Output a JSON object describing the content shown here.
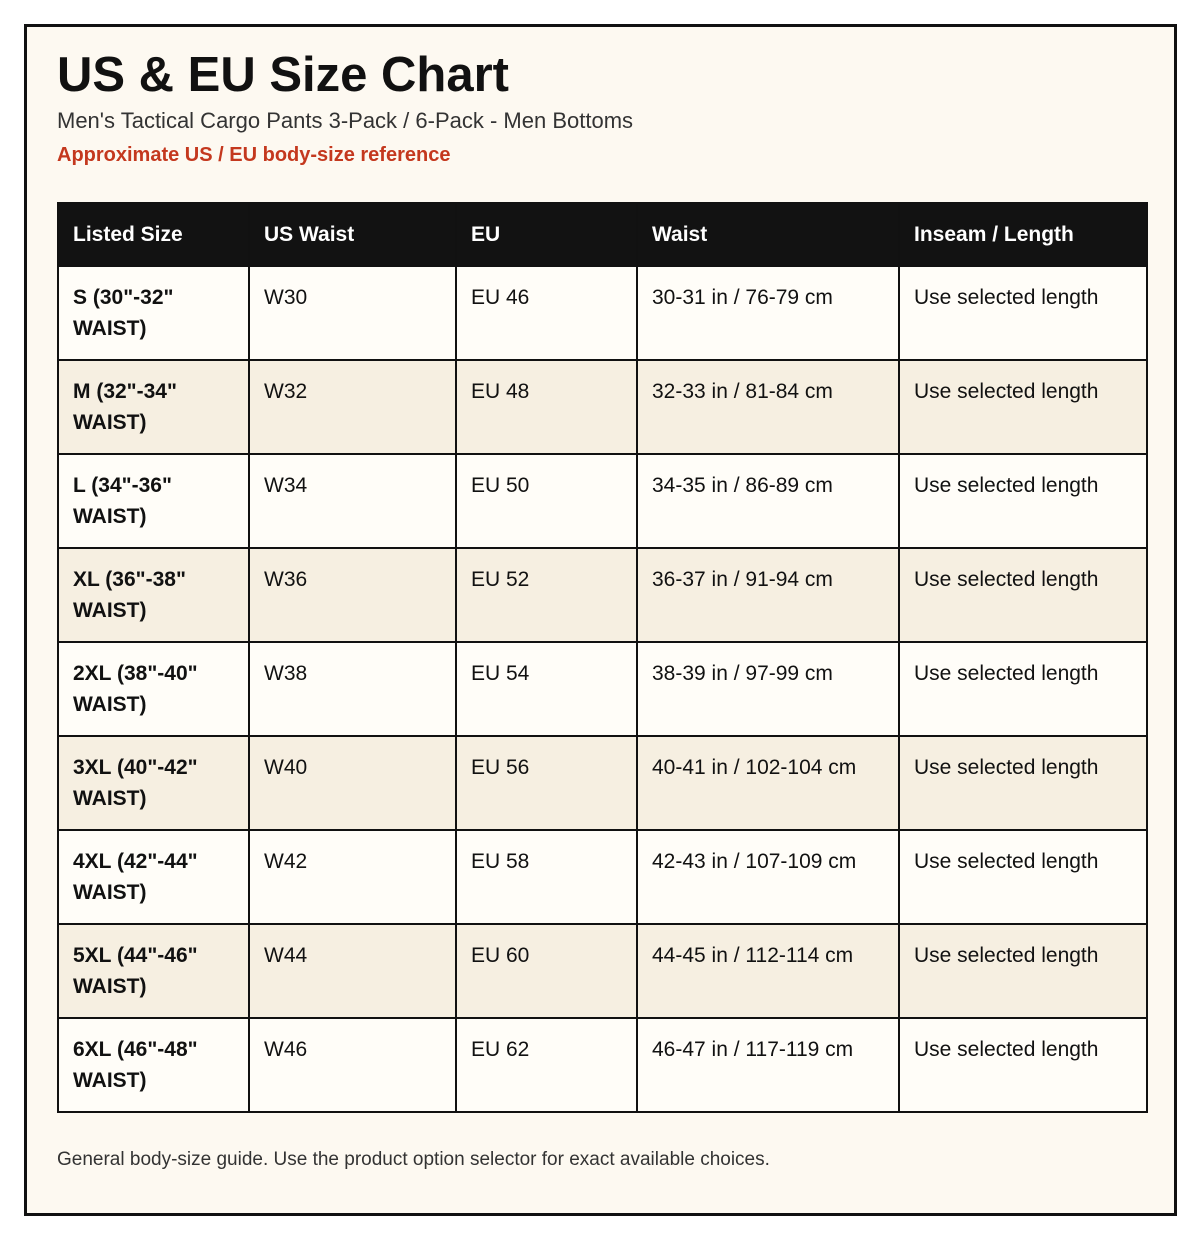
{
  "header": {
    "title": "US & EU Size Chart",
    "subtitle": "Men's Tactical Cargo Pants 3-Pack / 6-Pack - Men Bottoms",
    "note": "Approximate US / EU body-size reference"
  },
  "table": {
    "columns": [
      "Listed Size",
      "US Waist",
      "EU",
      "Waist",
      "Inseam / Length"
    ],
    "rows": [
      {
        "size": "S (30\"-32\" WAIST)",
        "us_waist": "W30",
        "eu": "EU 46",
        "waist": "30-31 in / 76-79 cm",
        "inseam": "Use selected length"
      },
      {
        "size": "M (32\"-34\" WAIST)",
        "us_waist": "W32",
        "eu": "EU 48",
        "waist": "32-33 in / 81-84 cm",
        "inseam": "Use selected length"
      },
      {
        "size": "L (34\"-36\" WAIST)",
        "us_waist": "W34",
        "eu": "EU 50",
        "waist": "34-35 in / 86-89 cm",
        "inseam": "Use selected length"
      },
      {
        "size": "XL (36\"-38\" WAIST)",
        "us_waist": "W36",
        "eu": "EU 52",
        "waist": "36-37 in / 91-94 cm",
        "inseam": "Use selected length"
      },
      {
        "size": "2XL (38\"-40\" WAIST)",
        "us_waist": "W38",
        "eu": "EU 54",
        "waist": "38-39 in / 97-99 cm",
        "inseam": "Use selected length"
      },
      {
        "size": "3XL (40\"-42\" WAIST)",
        "us_waist": "W40",
        "eu": "EU 56",
        "waist": "40-41 in / 102-104 cm",
        "inseam": "Use selected length"
      },
      {
        "size": "4XL (42\"-44\" WAIST)",
        "us_waist": "W42",
        "eu": "EU 58",
        "waist": "42-43 in / 107-109 cm",
        "inseam": "Use selected length"
      },
      {
        "size": "5XL (44\"-46\" WAIST)",
        "us_waist": "W44",
        "eu": "EU 60",
        "waist": "44-45 in / 112-114 cm",
        "inseam": "Use selected length"
      },
      {
        "size": "6XL (46\"-48\" WAIST)",
        "us_waist": "W46",
        "eu": "EU 62",
        "waist": "46-47 in / 117-119 cm",
        "inseam": "Use selected length"
      }
    ]
  },
  "footer": {
    "text": "General body-size guide. Use the product option selector for exact available choices."
  },
  "colors": {
    "accent": "#c4381e",
    "header_bg": "#121212",
    "card_bg": "#fdf9f1",
    "row_alt": "#f6efe1"
  }
}
